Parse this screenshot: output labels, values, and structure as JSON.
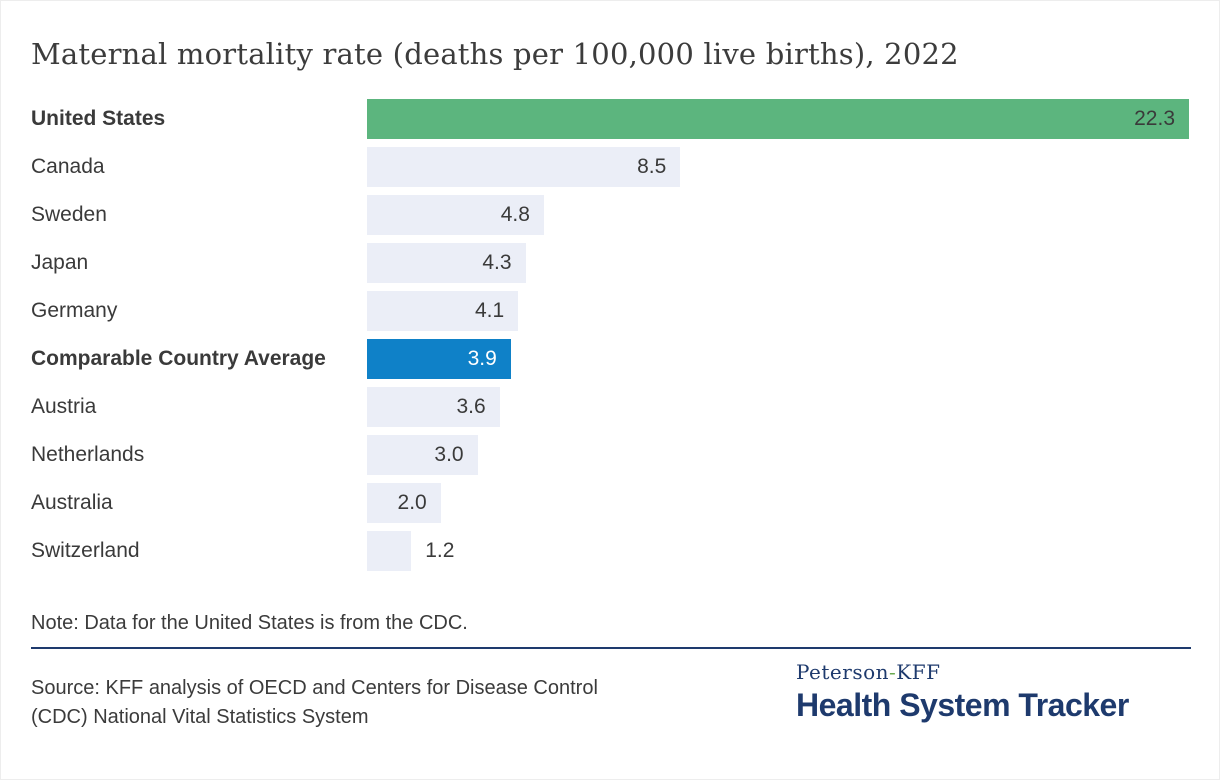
{
  "page": {
    "title": "Maternal mortality rate (deaths per 100,000 live births), 2022",
    "note": "Note: Data for the United States is from the CDC.",
    "source_line1": "Source: KFF analysis of OECD and Centers for Disease Control",
    "source_line2": "(CDC) National Vital Statistics System",
    "logo": {
      "top_prefix": "Peterson",
      "hyphen": "-",
      "top_suffix": "KFF",
      "main": "Health System Tracker"
    }
  },
  "colors": {
    "us_green": "#5cb57e",
    "average_blue": "#0f81c8",
    "bar_default": "#ebeef7",
    "navy": "#1e3a6d",
    "logo_hyphen_green": "#6aaa50",
    "text_dark": "#3a3a3a",
    "value_on_blue": "#ffffff"
  },
  "chart_data": {
    "type": "bar",
    "orientation": "horizontal",
    "title": "Maternal mortality rate (deaths per 100,000 live births), 2022",
    "xlabel": "",
    "ylabel": "",
    "xlim": [
      0,
      22.3
    ],
    "grid": false,
    "legend": "none",
    "categories": [
      "United States",
      "Canada",
      "Sweden",
      "Japan",
      "Germany",
      "Comparable Country Average",
      "Austria",
      "Netherlands",
      "Australia",
      "Switzerland"
    ],
    "values": [
      22.3,
      8.5,
      4.8,
      4.3,
      4.1,
      3.9,
      3.6,
      3.0,
      2.0,
      1.2
    ],
    "rows": [
      {
        "label": "United States",
        "value": 22.3,
        "display": "22.3",
        "bold": true,
        "color": "us_green",
        "value_position": "inside"
      },
      {
        "label": "Canada",
        "value": 8.5,
        "display": "8.5",
        "bold": false,
        "color": "bar_default",
        "value_position": "inside"
      },
      {
        "label": "Sweden",
        "value": 4.8,
        "display": "4.8",
        "bold": false,
        "color": "bar_default",
        "value_position": "inside"
      },
      {
        "label": "Japan",
        "value": 4.3,
        "display": "4.3",
        "bold": false,
        "color": "bar_default",
        "value_position": "inside"
      },
      {
        "label": "Germany",
        "value": 4.1,
        "display": "4.1",
        "bold": false,
        "color": "bar_default",
        "value_position": "inside"
      },
      {
        "label": "Comparable Country Average",
        "value": 3.9,
        "display": "3.9",
        "bold": true,
        "color": "average_blue",
        "value_position": "inside",
        "value_color": "#ffffff"
      },
      {
        "label": "Austria",
        "value": 3.6,
        "display": "3.6",
        "bold": false,
        "color": "bar_default",
        "value_position": "inside"
      },
      {
        "label": "Netherlands",
        "value": 3.0,
        "display": "3.0",
        "bold": false,
        "color": "bar_default",
        "value_position": "inside"
      },
      {
        "label": "Australia",
        "value": 2.0,
        "display": "2.0",
        "bold": false,
        "color": "bar_default",
        "value_position": "inside"
      },
      {
        "label": "Switzerland",
        "value": 1.2,
        "display": "1.2",
        "bold": false,
        "color": "bar_default",
        "value_position": "outside"
      }
    ]
  }
}
